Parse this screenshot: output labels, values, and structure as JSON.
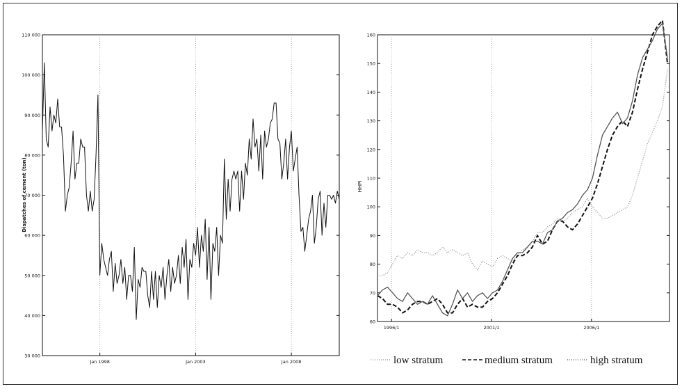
{
  "chart_data": [
    {
      "type": "line",
      "ylabel": "Dispatches of cement (ton)",
      "xlabel": "",
      "ylim": [
        30000,
        110000
      ],
      "xlim": [
        1995.0,
        2010.5
      ],
      "y_ticks": [
        30000,
        40000,
        50000,
        60000,
        70000,
        80000,
        90000,
        100000,
        110000
      ],
      "y_tick_labels": [
        "30 000",
        "40 000",
        "50 000",
        "60 000",
        "70 000",
        "80 000",
        "90 000",
        "100 000",
        "110 000"
      ],
      "x_ticks": [
        1998,
        2003,
        2008
      ],
      "x_tick_labels": [
        "Jan 1998",
        "Jan 2003",
        "Jan 2008"
      ],
      "grid": "vertical at x ticks (dotted)",
      "series": [
        {
          "color": "#111111",
          "x": [
            1995.0,
            1995.1,
            1995.2,
            1995.3,
            1995.4,
            1995.5,
            1995.6,
            1995.7,
            1995.8,
            1995.9,
            1996.0,
            1996.1,
            1996.2,
            1996.3,
            1996.4,
            1996.5,
            1996.6,
            1996.7,
            1996.8,
            1996.9,
            1997.0,
            1997.1,
            1997.2,
            1997.3,
            1997.4,
            1997.5,
            1997.6,
            1997.7,
            1997.8,
            1997.9,
            1998.0,
            1998.1,
            1998.2,
            1998.3,
            1998.4,
            1998.5,
            1998.6,
            1998.7,
            1998.8,
            1998.9,
            1999.0,
            1999.1,
            1999.2,
            1999.3,
            1999.4,
            1999.5,
            1999.6,
            1999.7,
            1999.8,
            1999.9,
            2000.0,
            2000.1,
            2000.2,
            2000.3,
            2000.4,
            2000.5,
            2000.6,
            2000.7,
            2000.8,
            2000.9,
            2001.0,
            2001.1,
            2001.2,
            2001.3,
            2001.4,
            2001.5,
            2001.6,
            2001.7,
            2001.8,
            2001.9,
            2002.0,
            2002.1,
            2002.2,
            2002.3,
            2002.4,
            2002.5,
            2002.6,
            2002.7,
            2002.8,
            2002.9,
            2003.0,
            2003.1,
            2003.2,
            2003.3,
            2003.4,
            2003.5,
            2003.6,
            2003.7,
            2003.8,
            2003.9,
            2004.0,
            2004.1,
            2004.2,
            2004.3,
            2004.4,
            2004.5,
            2004.6,
            2004.7,
            2004.8,
            2004.9,
            2005.0,
            2005.1,
            2005.2,
            2005.3,
            2005.4,
            2005.5,
            2005.6,
            2005.7,
            2005.8,
            2005.9,
            2006.0,
            2006.1,
            2006.2,
            2006.3,
            2006.4,
            2006.5,
            2006.6,
            2006.7,
            2006.8,
            2006.9,
            2007.0,
            2007.1,
            2007.2,
            2007.3,
            2007.4,
            2007.5,
            2007.6,
            2007.7,
            2007.8,
            2007.9,
            2008.0,
            2008.1,
            2008.2,
            2008.3,
            2008.4,
            2008.5,
            2008.6,
            2008.7,
            2008.8,
            2008.9,
            2009.0,
            2009.1,
            2009.2,
            2009.3,
            2009.4,
            2009.5,
            2009.6,
            2009.7,
            2009.8,
            2009.9,
            2010.0,
            2010.1,
            2010.2,
            2010.3,
            2010.4,
            2010.5
          ],
          "y": [
            86000,
            103000,
            84000,
            82000,
            92000,
            86000,
            90000,
            88000,
            94000,
            87000,
            87000,
            80000,
            66000,
            70000,
            72000,
            78000,
            86000,
            74000,
            78000,
            78000,
            84000,
            82000,
            82000,
            70000,
            66000,
            71000,
            66000,
            69000,
            80000,
            95000,
            50000,
            58000,
            54000,
            52000,
            50000,
            54000,
            56000,
            46000,
            53000,
            48000,
            50000,
            54000,
            48000,
            52000,
            44000,
            50000,
            50000,
            46000,
            57000,
            39000,
            49000,
            47000,
            52000,
            51000,
            51000,
            45000,
            42000,
            51000,
            44000,
            51000,
            42000,
            50000,
            47000,
            52000,
            44000,
            50000,
            54000,
            46000,
            52000,
            48000,
            50000,
            55000,
            48000,
            57000,
            52000,
            59000,
            44000,
            54000,
            52000,
            58000,
            55000,
            62000,
            52000,
            60000,
            56000,
            64000,
            49000,
            62000,
            44000,
            58000,
            56000,
            62000,
            50000,
            60000,
            58000,
            79000,
            64000,
            74000,
            66000,
            74000,
            76000,
            74000,
            76000,
            66000,
            76000,
            69000,
            78000,
            75000,
            84000,
            79000,
            89000,
            82000,
            84000,
            76000,
            85000,
            74000,
            86000,
            82000,
            84000,
            88000,
            89000,
            93000,
            93000,
            84000,
            83000,
            74000,
            78000,
            84000,
            74000,
            82000,
            86000,
            76000,
            79000,
            82000,
            70000,
            61000,
            62000,
            56000,
            60000,
            64000,
            66000,
            70000,
            58000,
            62000,
            69000,
            71000,
            60000,
            68000,
            62000,
            70000,
            70000,
            69000,
            70000,
            68000,
            71000,
            69000
          ]
        }
      ]
    },
    {
      "type": "line",
      "ylabel": "HHPI",
      "xlabel": "",
      "ylim": [
        60,
        160
      ],
      "xlim": [
        1995.3,
        2009.9
      ],
      "y_ticks": [
        60,
        70,
        80,
        90,
        100,
        110,
        120,
        130,
        140,
        150,
        160
      ],
      "y_tick_labels": [
        "60",
        "70",
        "80",
        "90",
        "100",
        "110",
        "120",
        "130",
        "140",
        "150",
        "160"
      ],
      "x_ticks": [
        1996,
        2001,
        2006
      ],
      "x_tick_labels": [
        "1996/1",
        "2001/1",
        "2006/1"
      ],
      "grid": "vertical at x ticks (dotted)",
      "legend_position": "bottom",
      "x": [
        1995.3,
        1995.55,
        1995.8,
        1996.05,
        1996.3,
        1996.55,
        1996.8,
        1997.05,
        1997.3,
        1997.55,
        1997.8,
        1998.05,
        1998.3,
        1998.55,
        1998.8,
        1999.05,
        1999.3,
        1999.55,
        1999.8,
        2000.05,
        2000.3,
        2000.55,
        2000.8,
        2001.05,
        2001.3,
        2001.55,
        2001.8,
        2002.05,
        2002.3,
        2002.55,
        2002.8,
        2003.05,
        2003.3,
        2003.55,
        2003.8,
        2004.05,
        2004.3,
        2004.55,
        2004.8,
        2005.05,
        2005.3,
        2005.55,
        2005.8,
        2006.05,
        2006.3,
        2006.55,
        2006.8,
        2007.05,
        2007.3,
        2007.55,
        2007.8,
        2008.05,
        2008.3,
        2008.55,
        2008.8,
        2009.05,
        2009.3,
        2009.55,
        2009.8
      ],
      "series": [
        {
          "name": "low stratum",
          "dash": "1,2",
          "color": "#8a8a8a",
          "width": 1.3,
          "y": [
            76,
            76,
            77,
            80,
            83,
            82,
            84,
            83,
            85,
            84,
            84,
            83,
            84,
            86,
            84,
            85,
            84,
            83,
            84,
            80,
            78,
            81,
            80,
            79,
            82,
            83,
            82,
            81,
            83,
            85,
            86,
            88,
            91,
            91,
            93,
            94,
            96,
            95,
            96,
            98,
            99,
            100,
            103,
            100,
            98,
            96,
            96,
            97,
            98,
            99,
            100,
            104,
            110,
            116,
            122,
            126,
            130,
            135,
            148
          ]
        },
        {
          "name": "medium stratum",
          "dash": "6,3",
          "color": "#111111",
          "width": 2.0,
          "y": [
            69,
            68,
            66,
            66,
            65,
            63,
            64,
            66,
            67,
            67,
            66,
            67,
            68,
            66,
            63,
            63,
            66,
            68,
            65,
            66,
            65,
            65,
            67,
            68,
            70,
            73,
            76,
            80,
            83,
            83,
            84,
            86,
            90,
            87,
            88,
            92,
            95,
            95,
            93,
            92,
            94,
            97,
            100,
            103,
            108,
            114,
            120,
            125,
            128,
            130,
            128,
            133,
            141,
            148,
            154,
            160,
            163,
            165,
            150
          ]
        },
        {
          "name": "high stratum",
          "dash": "",
          "color": "#555555",
          "width": 1.3,
          "y": [
            69,
            71,
            72,
            70,
            68,
            67,
            70,
            68,
            66,
            67,
            66,
            69,
            66,
            63,
            62,
            66,
            71,
            68,
            70,
            67,
            69,
            70,
            68,
            70,
            71,
            74,
            78,
            82,
            84,
            84,
            86,
            88,
            88,
            87,
            91,
            92,
            95,
            96,
            98,
            99,
            101,
            104,
            106,
            110,
            118,
            125,
            128,
            131,
            133,
            129,
            131,
            137,
            146,
            152,
            155,
            158,
            162,
            164,
            152
          ]
        }
      ]
    }
  ]
}
